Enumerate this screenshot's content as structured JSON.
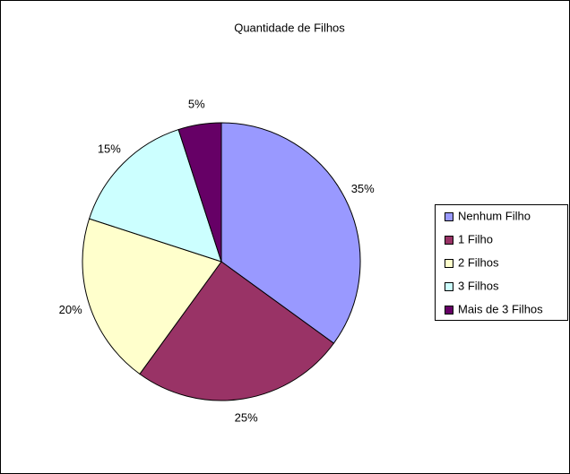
{
  "chart_data": {
    "type": "pie",
    "title": "Quantidade de Filhos",
    "categories": [
      "Nenhum Filho",
      "1 Filho",
      "2 Filhos",
      "3 Filhos",
      "Mais de 3 Filhos"
    ],
    "values": [
      35,
      25,
      20,
      15,
      5
    ],
    "value_labels": [
      "35%",
      "25%",
      "20%",
      "15%",
      "5%"
    ],
    "colors": [
      "#9999ff",
      "#993366",
      "#ffffcc",
      "#ccffff",
      "#660066"
    ],
    "legend": "right"
  }
}
